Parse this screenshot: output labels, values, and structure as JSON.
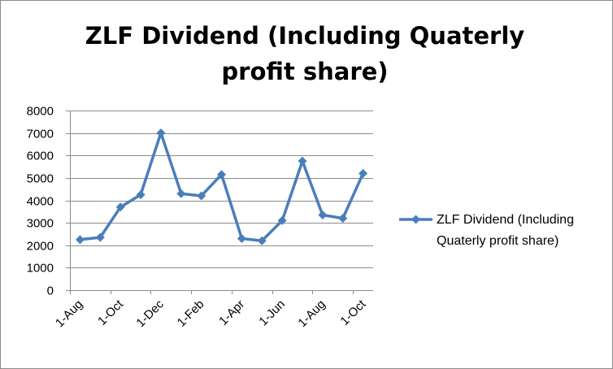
{
  "chart_data": {
    "type": "line",
    "title_line1": "ZLF Dividend (Including Quaterly",
    "title_line2": "profit share)",
    "ylim": [
      0,
      8000
    ],
    "y_ticks": [
      0,
      1000,
      2000,
      3000,
      4000,
      5000,
      6000,
      7000,
      8000
    ],
    "x_tick_labels": [
      "1-Aug",
      "1-Oct",
      "1-Dec",
      "1-Feb",
      "1-Apr",
      "1-Jun",
      "1-Aug",
      "1-Oct"
    ],
    "grid": true,
    "legend_position": "right",
    "series": [
      {
        "name_line1": "ZLF Dividend (Including",
        "name_line2": "Quaterly profit share)",
        "color": "#4a7ebb",
        "marker": "diamond",
        "values": [
          2250,
          2350,
          3700,
          4250,
          7000,
          4300,
          4200,
          5150,
          2300,
          2200,
          3100,
          5750,
          3350,
          3200,
          5200
        ]
      }
    ]
  }
}
